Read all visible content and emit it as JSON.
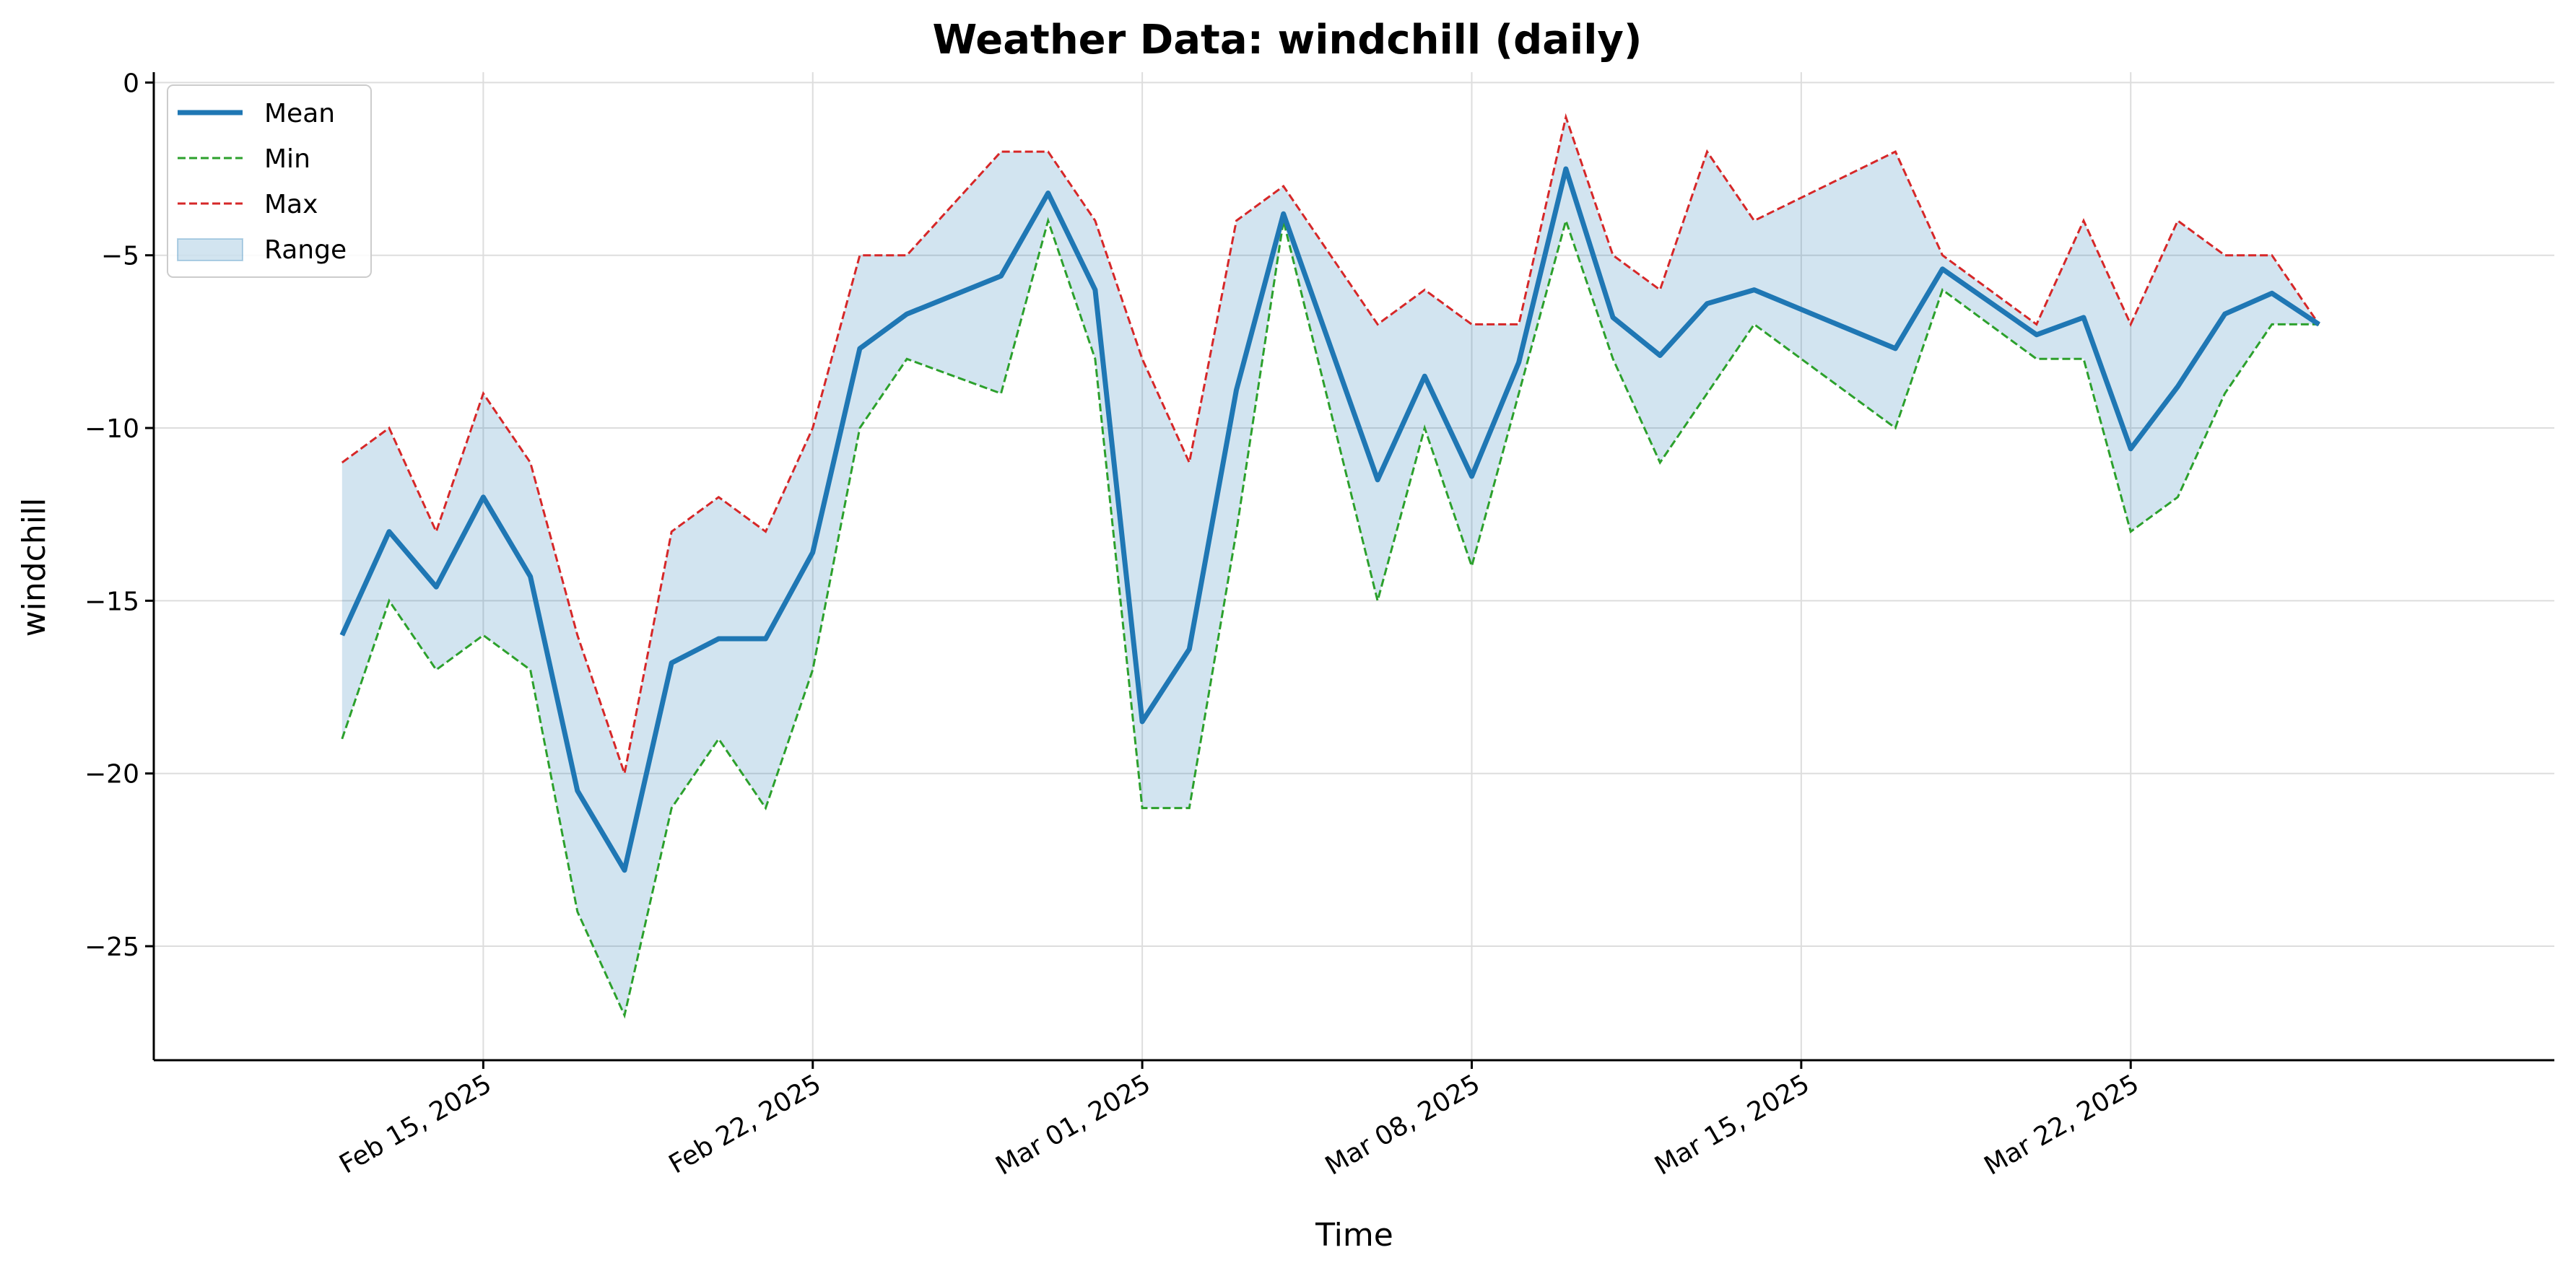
{
  "chart_data": {
    "type": "line",
    "title": "Weather Data: windchill (daily)",
    "xlabel": "Time",
    "ylabel": "windchill",
    "ylim": [
      -28.3,
      0.3
    ],
    "xlim": [
      "2025-02-08",
      "2025-03-31"
    ],
    "grid": true,
    "legend_position": "top-left",
    "x_tick_labels": [
      {
        "date": "2025-02-15",
        "label": "Feb 15, 2025"
      },
      {
        "date": "2025-02-22",
        "label": "Feb 22, 2025"
      },
      {
        "date": "2025-03-01",
        "label": "Mar 01, 2025"
      },
      {
        "date": "2025-03-08",
        "label": "Mar 08, 2025"
      },
      {
        "date": "2025-03-15",
        "label": "Mar 15, 2025"
      },
      {
        "date": "2025-03-22",
        "label": "Mar 22, 2025"
      }
    ],
    "y_ticks": [
      0,
      -5,
      -10,
      -15,
      -20,
      -25
    ],
    "y_tick_labels": [
      "0",
      "−5",
      "−10",
      "−15",
      "−20",
      "−25"
    ],
    "x": [
      "2025-02-12",
      "2025-02-13",
      "2025-02-14",
      "2025-02-15",
      "2025-02-16",
      "2025-02-17",
      "2025-02-18",
      "2025-02-19",
      "2025-02-20",
      "2025-02-21",
      "2025-02-22",
      "2025-02-23",
      "2025-02-24",
      "2025-02-26",
      "2025-02-27",
      "2025-02-28",
      "2025-03-01",
      "2025-03-02",
      "2025-03-03",
      "2025-03-04",
      "2025-03-06",
      "2025-03-07",
      "2025-03-08",
      "2025-03-09",
      "2025-03-10",
      "2025-03-11",
      "2025-03-12",
      "2025-03-13",
      "2025-03-14",
      "2025-03-17",
      "2025-03-18",
      "2025-03-20",
      "2025-03-21",
      "2025-03-22",
      "2025-03-23",
      "2025-03-24",
      "2025-03-25",
      "2025-03-26"
    ],
    "series": [
      {
        "name": "Mean",
        "style": "solid",
        "color": "#1f77b4",
        "values": [
          -16,
          -13,
          -14.6,
          -12,
          -14.3,
          -20.5,
          -22.8,
          -16.8,
          -16.1,
          -16.1,
          -13.6,
          -7.7,
          -6.7,
          -5.6,
          -3.2,
          -6,
          -18.5,
          -16.4,
          -8.9,
          -3.8,
          -11.5,
          -8.5,
          -11.4,
          -8.1,
          -2.5,
          -6.8,
          -7.9,
          -6.4,
          -6,
          -7.7,
          -5.4,
          -7.3,
          -6.8,
          -10.6,
          -8.8,
          -6.7,
          -6.1,
          -7
        ]
      },
      {
        "name": "Min",
        "style": "dashed",
        "color": "#2ca02c",
        "values": [
          -19,
          -15,
          -17,
          -16,
          -17,
          -24,
          -27,
          -21,
          -19,
          -21,
          -17,
          -10,
          -8,
          -9,
          -4,
          -8,
          -21,
          -21,
          -13,
          -4,
          -15,
          -10,
          -14,
          -9,
          -4,
          -8,
          -11,
          -9,
          -7,
          -10,
          -6,
          -8,
          -8,
          -13,
          -12,
          -9,
          -7,
          -7
        ]
      },
      {
        "name": "Max",
        "style": "dashed",
        "color": "#d62728",
        "values": [
          -11,
          -10,
          -13,
          -9,
          -11,
          -16,
          -20,
          -13,
          -12,
          -13,
          -10,
          -5,
          -5,
          -2,
          -2,
          -4,
          -8,
          -11,
          -4,
          -3,
          -7,
          -6,
          -7,
          -7,
          -1,
          -5,
          -6,
          -2,
          -4,
          -2,
          -5,
          -7,
          -4,
          -7,
          -4,
          -5,
          -5,
          -7
        ]
      }
    ],
    "range": {
      "name": "Range",
      "color": "#1f77b4",
      "opacity": 0.2
    }
  }
}
